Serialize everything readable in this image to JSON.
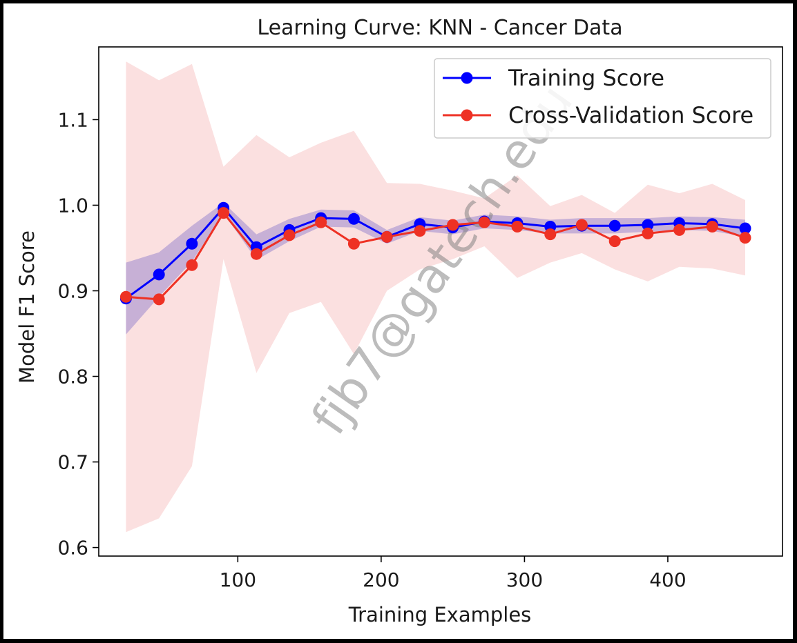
{
  "chart_data": {
    "type": "line",
    "title": "Learning Curve: KNN - Cancer Data",
    "xlabel": "Training Examples",
    "ylabel": "Model F1 Score",
    "xlim": [
      3,
      480
    ],
    "ylim": [
      0.59,
      1.185
    ],
    "xticks": [
      100,
      200,
      300,
      400
    ],
    "yticks": [
      0.6,
      0.7,
      0.8,
      0.9,
      1.0,
      1.1
    ],
    "ytick_labels": [
      "0.6",
      "0.7",
      "0.8",
      "0.9",
      "1.0",
      "1.1"
    ],
    "grid": false,
    "legend_position": "top-right",
    "x": [
      22,
      45,
      68,
      90,
      113,
      136,
      158,
      181,
      204,
      227,
      250,
      272,
      295,
      318,
      340,
      363,
      386,
      408,
      431,
      454
    ],
    "series": [
      {
        "name": "Training Score",
        "color": "#0000ff",
        "fill_color": "#7b68c8",
        "values": [
          0.891,
          0.919,
          0.955,
          0.997,
          0.951,
          0.971,
          0.985,
          0.984,
          0.963,
          0.978,
          0.974,
          0.981,
          0.979,
          0.975,
          0.976,
          0.976,
          0.977,
          0.979,
          0.978,
          0.973
        ],
        "lower": [
          0.849,
          0.893,
          0.934,
          0.991,
          0.936,
          0.958,
          0.975,
          0.974,
          0.955,
          0.97,
          0.966,
          0.973,
          0.971,
          0.967,
          0.967,
          0.967,
          0.969,
          0.971,
          0.97,
          0.963
        ],
        "upper": [
          0.933,
          0.945,
          0.976,
          1.003,
          0.966,
          0.984,
          0.995,
          0.994,
          0.971,
          0.986,
          0.982,
          0.989,
          0.987,
          0.983,
          0.985,
          0.985,
          0.985,
          0.987,
          0.986,
          0.983
        ]
      },
      {
        "name": "Cross-Validation Score",
        "color": "#ee3124",
        "fill_color": "#f4a0a0",
        "values": [
          0.893,
          0.89,
          0.93,
          0.991,
          0.943,
          0.965,
          0.98,
          0.955,
          0.963,
          0.97,
          0.977,
          0.98,
          0.975,
          0.966,
          0.977,
          0.958,
          0.967,
          0.971,
          0.975,
          0.962
        ],
        "lower": [
          0.618,
          0.634,
          0.695,
          0.937,
          0.804,
          0.874,
          0.887,
          0.826,
          0.9,
          0.925,
          0.937,
          0.952,
          0.915,
          0.933,
          0.944,
          0.925,
          0.911,
          0.928,
          0.926,
          0.918
        ],
        "upper": [
          1.168,
          1.146,
          1.165,
          1.045,
          1.082,
          1.056,
          1.073,
          1.087,
          1.026,
          1.025,
          1.017,
          1.008,
          1.035,
          0.999,
          1.012,
          0.991,
          1.024,
          1.014,
          1.025,
          1.006
        ]
      }
    ],
    "watermark": "fjb7@gatech.edu"
  }
}
